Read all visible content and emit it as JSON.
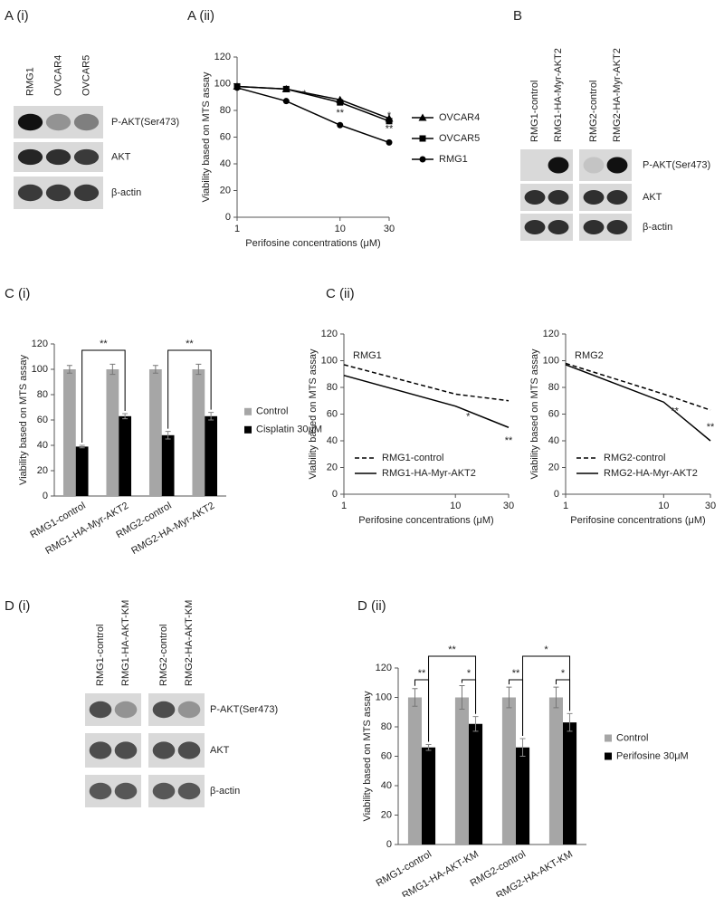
{
  "panel_labels": [
    "A (i)",
    "A (ii)",
    "B",
    "C (i)",
    "C (ii)",
    "D (i)",
    "D (ii)"
  ],
  "blots": [
    {
      "lanes": [
        "RMG1",
        "OVCAR4",
        "OVCAR5"
      ],
      "rows": [
        "P-AKT(Ser473)",
        "AKT",
        "β-actin"
      ]
    },
    {
      "lanes": [
        "RMG1-control",
        "RMG1-HA-Myr-AKT2",
        "RMG2-control",
        "RMG2-HA-Myr-AKT2"
      ],
      "rows": [
        "P-AKT(Ser473)",
        "AKT",
        "β-actin"
      ]
    },
    {
      "lanes": [
        "RMG1-control",
        "RMG1-HA-AKT-KM",
        "RMG2-control",
        "RMG2-HA-AKT-KM"
      ],
      "rows": [
        "P-AKT(Ser473)",
        "AKT",
        "β-actin"
      ]
    }
  ],
  "chart_data": [
    {
      "type": "line",
      "y_label": "Viability based on MTS assay",
      "x_label": "Perifosine concentrations (μM)",
      "x": [
        1,
        3,
        10,
        30
      ],
      "xlim": [
        1,
        30
      ],
      "xticks": [
        1,
        10,
        30
      ],
      "log_x": true,
      "ylim": [
        0,
        120
      ],
      "yticks": [
        0,
        20,
        40,
        60,
        80,
        100,
        120
      ],
      "legend": "right",
      "series": [
        {
          "name": "OVCAR4",
          "color": "#000000",
          "marker": "triangle",
          "line_style": "solid",
          "values": [
            98,
            96,
            88,
            74
          ]
        },
        {
          "name": "OVCAR5",
          "color": "#000000",
          "marker": "square",
          "line_style": "solid",
          "values": [
            98,
            96,
            86,
            72
          ]
        },
        {
          "name": "RMG1",
          "color": "#000000",
          "marker": "circle",
          "line_style": "solid",
          "values": [
            97,
            87,
            69,
            56
          ]
        }
      ],
      "annotations": [
        {
          "text": "*",
          "x": 4.5,
          "y": 92
        },
        {
          "text": "**",
          "x": 10,
          "y": 78
        },
        {
          "text": "*",
          "x": 30,
          "y": 76
        },
        {
          "text": "**",
          "x": 30,
          "y": 66
        }
      ]
    },
    {
      "type": "bar",
      "y_label": "Viability based on MTS assay",
      "categories": [
        "RMG1-control",
        "RMG1-HA-Myr-AKT2",
        "RMG2-control",
        "RMG2-HA-Myr-AKT2"
      ],
      "ylim": [
        0,
        120
      ],
      "yticks": [
        0,
        20,
        40,
        60,
        80,
        100,
        120
      ],
      "legend": "right",
      "series": [
        {
          "name": "Control",
          "color": "#a6a6a6",
          "values": [
            100,
            100,
            100,
            100
          ],
          "errors": [
            3,
            4,
            3,
            4
          ]
        },
        {
          "name": "Cisplatin 30μM",
          "color": "#000000",
          "values": [
            39,
            63,
            48,
            63
          ],
          "errors": [
            1,
            2,
            3,
            3
          ]
        }
      ],
      "brackets": [
        {
          "label": "**",
          "y": 115,
          "from": [
            "Cisplatin 30μM",
            "RMG1-control"
          ],
          "to": [
            "Cisplatin 30μM",
            "RMG1-HA-Myr-AKT2"
          ]
        },
        {
          "label": "**",
          "y": 115,
          "from": [
            "Cisplatin 30μM",
            "RMG2-control"
          ],
          "to": [
            "Cisplatin 30μM",
            "RMG2-HA-Myr-AKT2"
          ]
        }
      ]
    },
    {
      "type": "line",
      "title": "RMG1",
      "y_label": "Viability based on MTS assay",
      "x_label": "Perifosine concentrations (μM)",
      "x": [
        1,
        10,
        30
      ],
      "xlim": [
        1,
        30
      ],
      "xticks": [
        1,
        10,
        30
      ],
      "log_x": true,
      "ylim": [
        0,
        120
      ],
      "yticks": [
        0,
        20,
        40,
        60,
        80,
        100,
        120
      ],
      "legend": "lower left",
      "series": [
        {
          "name": "RMG1-control",
          "color": "#000000",
          "line_style": "dashed",
          "values": [
            97,
            75,
            70
          ]
        },
        {
          "name": "RMG1-HA-Myr-AKT2",
          "color": "#000000",
          "line_style": "solid",
          "values": [
            89,
            66,
            50
          ]
        }
      ],
      "annotations": [
        {
          "text": "*",
          "x": 13,
          "y": 58
        },
        {
          "text": "**",
          "x": 30,
          "y": 40
        }
      ]
    },
    {
      "type": "line",
      "title": "RMG2",
      "y_label": "Viability based on MTS assay",
      "x_label": "Perifosine concentrations (μM)",
      "x": [
        1,
        10,
        30
      ],
      "xlim": [
        1,
        30
      ],
      "xticks": [
        1,
        10,
        30
      ],
      "log_x": true,
      "ylim": [
        0,
        120
      ],
      "yticks": [
        0,
        20,
        40,
        60,
        80,
        100,
        120
      ],
      "legend": "lower left",
      "series": [
        {
          "name": "RMG2-control",
          "color": "#000000",
          "line_style": "dashed",
          "values": [
            98,
            75,
            63
          ]
        },
        {
          "name": "RMG2-HA-Myr-AKT2",
          "color": "#000000",
          "line_style": "solid",
          "values": [
            97,
            69,
            40
          ]
        }
      ],
      "annotations": [
        {
          "text": "**",
          "x": 13,
          "y": 62
        },
        {
          "text": "**",
          "x": 30,
          "y": 50
        }
      ]
    },
    {
      "type": "bar",
      "y_label": "Viability based on MTS assay",
      "categories": [
        "RMG1-control",
        "RMG1-HA-AKT-KM",
        "RMG2-control",
        "RMG2-HA-AKT-KM"
      ],
      "ylim": [
        0,
        120
      ],
      "yticks": [
        0,
        20,
        40,
        60,
        80,
        100,
        120
      ],
      "legend": "right",
      "series": [
        {
          "name": "Control",
          "color": "#a6a6a6",
          "values": [
            100,
            100,
            100,
            100
          ],
          "errors": [
            6,
            8,
            7,
            7
          ]
        },
        {
          "name": "Perifosine 30μM",
          "color": "#000000",
          "values": [
            66,
            82,
            66,
            83
          ],
          "errors": [
            2,
            5,
            6,
            6
          ]
        }
      ],
      "brackets": [
        {
          "label": "**",
          "y": 112,
          "from": [
            "Control",
            "RMG1-control"
          ],
          "to": [
            "Perifosine 30μM",
            "RMG1-control"
          ]
        },
        {
          "label": "*",
          "y": 112,
          "from": [
            "Control",
            "RMG1-HA-AKT-KM"
          ],
          "to": [
            "Perifosine 30μM",
            "RMG1-HA-AKT-KM"
          ]
        },
        {
          "label": "**",
          "y": 112,
          "from": [
            "Control",
            "RMG2-control"
          ],
          "to": [
            "Perifosine 30μM",
            "RMG2-control"
          ]
        },
        {
          "label": "*",
          "y": 112,
          "from": [
            "Control",
            "RMG2-HA-AKT-KM"
          ],
          "to": [
            "Perifosine 30μM",
            "RMG2-HA-AKT-KM"
          ]
        },
        {
          "label": "**",
          "y": 128,
          "from": [
            "Perifosine 30μM",
            "RMG1-control"
          ],
          "to": [
            "Perifosine 30μM",
            "RMG1-HA-AKT-KM"
          ]
        },
        {
          "label": "*",
          "y": 128,
          "from": [
            "Perifosine 30μM",
            "RMG2-control"
          ],
          "to": [
            "Perifosine 30μM",
            "RMG2-HA-AKT-KM"
          ]
        }
      ]
    }
  ]
}
